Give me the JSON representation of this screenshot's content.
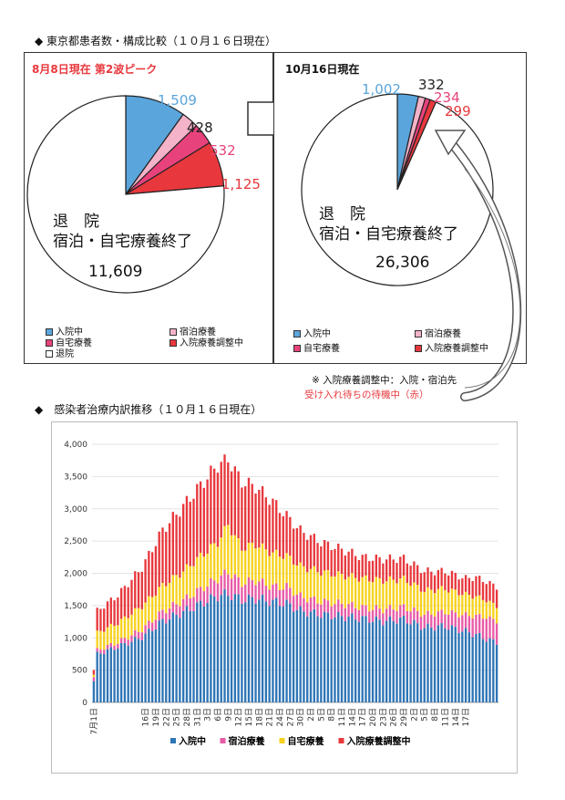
{
  "section1_title": "◆ 東京都患者数・構成比較（１０月１６日現在）",
  "left_panel": {
    "header": "8月8日現在 第2波ピーク",
    "slices": [
      {
        "label": "入院中",
        "value": 1509,
        "display": "1,509",
        "color": "#5aa5dc"
      },
      {
        "label": "宿泊療養",
        "value": 428,
        "display": "428",
        "color": "#f4b3c8"
      },
      {
        "label": "自宅療養",
        "value": 532,
        "display": "532",
        "color": "#e8427c"
      },
      {
        "label": "入院療養調整中",
        "value": 1125,
        "display": "1,125",
        "color": "#e8383d"
      },
      {
        "label": "退院",
        "value": 11609,
        "display": "11,609",
        "color": "#ffffff"
      }
    ],
    "center_line1": "退　院",
    "center_line2": "宿泊・自宅療養終了",
    "center_value": "11,609",
    "legend": [
      "入院中",
      "宿泊療養",
      "自宅療養",
      "入院療養調整中",
      "退院"
    ]
  },
  "right_panel": {
    "header": "10月16日現在",
    "slices": [
      {
        "label": "入院中",
        "value": 1002,
        "display": "1,002",
        "color": "#5aa5dc"
      },
      {
        "label": "宿泊療養",
        "value": 332,
        "display": "332",
        "color": "#f4b3c8"
      },
      {
        "label": "自宅療養",
        "value": 234,
        "display": "234",
        "color": "#e8427c"
      },
      {
        "label": "入院療養調整中",
        "value": 299,
        "display": "299",
        "color": "#e8383d"
      },
      {
        "label": "退院",
        "value": 26306,
        "display": "26,306",
        "color": "#ffffff"
      }
    ],
    "center_line1": "退　院",
    "center_line2": "宿泊・自宅療養終了",
    "center_value": "26,306",
    "legend": [
      "入院中",
      "宿泊療養",
      "自宅療養",
      "入院療養調整中"
    ]
  },
  "note_line1": "※ 入院療養調整中：入院・宿泊先",
  "note_line2": "受け入れ待ちの待機中（赤）",
  "section2_title": "◆　感染者治療内訳推移（１０月１６日現在）",
  "colors": {
    "hospital": "#2e75b6",
    "hotel": "#e85aa6",
    "home": "#f7d21e",
    "adjust": "#e8383d"
  },
  "chart_data": {
    "type": "bar",
    "stacked": true,
    "ylim": [
      0,
      4000
    ],
    "yticks": [
      "0",
      "500",
      "1,000",
      "1,500",
      "2,000",
      "2,500",
      "3,000",
      "3,500",
      "4,000"
    ],
    "xtick_labels": [
      "7月1日",
      "16日",
      "19日",
      "22日",
      "25日",
      "28日",
      "31日",
      "3日",
      "6日",
      "9日",
      "12日",
      "15日",
      "18日",
      "21日",
      "24日",
      "27日",
      "30日",
      "2日",
      "5日",
      "8日",
      "11日",
      "14日",
      "17日",
      "20日",
      "23日",
      "26日",
      "29日",
      "2日",
      "5日",
      "8日",
      "11日",
      "14日",
      "17日"
    ],
    "series": [
      {
        "name": "入院中",
        "color": "#2e75b6",
        "keypoints": [
          [
            0,
            330
          ],
          [
            1,
            750
          ],
          [
            7,
            860
          ],
          [
            14,
            1010
          ],
          [
            20,
            1260
          ],
          [
            26,
            1400
          ],
          [
            30,
            1500
          ],
          [
            36,
            1650
          ],
          [
            39,
            1680
          ],
          [
            43,
            1590
          ],
          [
            47,
            1610
          ],
          [
            52,
            1560
          ],
          [
            56,
            1530
          ],
          [
            60,
            1420
          ],
          [
            66,
            1360
          ],
          [
            72,
            1330
          ],
          [
            78,
            1300
          ],
          [
            84,
            1260
          ],
          [
            90,
            1290
          ],
          [
            96,
            1160
          ],
          [
            102,
            1180
          ],
          [
            108,
            1100
          ],
          [
            111,
            1050
          ],
          [
            114,
            980
          ],
          [
            117,
            930
          ]
        ]
      },
      {
        "name": "宿泊療養",
        "color": "#e85aa6",
        "keypoints": [
          [
            0,
            60
          ],
          [
            1,
            60
          ],
          [
            7,
            70
          ],
          [
            14,
            120
          ],
          [
            20,
            150
          ],
          [
            26,
            180
          ],
          [
            30,
            220
          ],
          [
            36,
            270
          ],
          [
            39,
            340
          ],
          [
            43,
            260
          ],
          [
            47,
            280
          ],
          [
            52,
            230
          ],
          [
            56,
            260
          ],
          [
            60,
            220
          ],
          [
            66,
            200
          ],
          [
            72,
            200
          ],
          [
            78,
            170
          ],
          [
            84,
            180
          ],
          [
            90,
            190
          ],
          [
            96,
            200
          ],
          [
            102,
            220
          ],
          [
            108,
            250
          ],
          [
            111,
            290
          ],
          [
            114,
            340
          ],
          [
            117,
            330
          ]
        ]
      },
      {
        "name": "自宅療養",
        "color": "#f7d21e",
        "keypoints": [
          [
            0,
            40
          ],
          [
            1,
            270
          ],
          [
            7,
            300
          ],
          [
            14,
            360
          ],
          [
            20,
            400
          ],
          [
            26,
            450
          ],
          [
            30,
            500
          ],
          [
            36,
            560
          ],
          [
            39,
            730
          ],
          [
            43,
            540
          ],
          [
            47,
            560
          ],
          [
            52,
            520
          ],
          [
            56,
            480
          ],
          [
            60,
            470
          ],
          [
            66,
            460
          ],
          [
            72,
            440
          ],
          [
            78,
            450
          ],
          [
            84,
            450
          ],
          [
            90,
            430
          ],
          [
            96,
            370
          ],
          [
            102,
            360
          ],
          [
            108,
            320
          ],
          [
            111,
            300
          ],
          [
            114,
            260
          ],
          [
            117,
            230
          ]
        ]
      },
      {
        "name": "入院療養調整中",
        "color": "#e8383d",
        "keypoints": [
          [
            0,
            70
          ],
          [
            1,
            340
          ],
          [
            7,
            430
          ],
          [
            14,
            600
          ],
          [
            20,
            860
          ],
          [
            26,
            1010
          ],
          [
            30,
            1080
          ],
          [
            36,
            1200
          ],
          [
            39,
            1010
          ],
          [
            43,
            1030
          ],
          [
            47,
            890
          ],
          [
            52,
            800
          ],
          [
            56,
            620
          ],
          [
            60,
            550
          ],
          [
            66,
            460
          ],
          [
            72,
            400
          ],
          [
            78,
            330
          ],
          [
            84,
            330
          ],
          [
            90,
            320
          ],
          [
            96,
            300
          ],
          [
            102,
            270
          ],
          [
            108,
            250
          ],
          [
            111,
            300
          ],
          [
            114,
            290
          ],
          [
            117,
            300
          ]
        ]
      }
    ],
    "num_bars": 118
  }
}
